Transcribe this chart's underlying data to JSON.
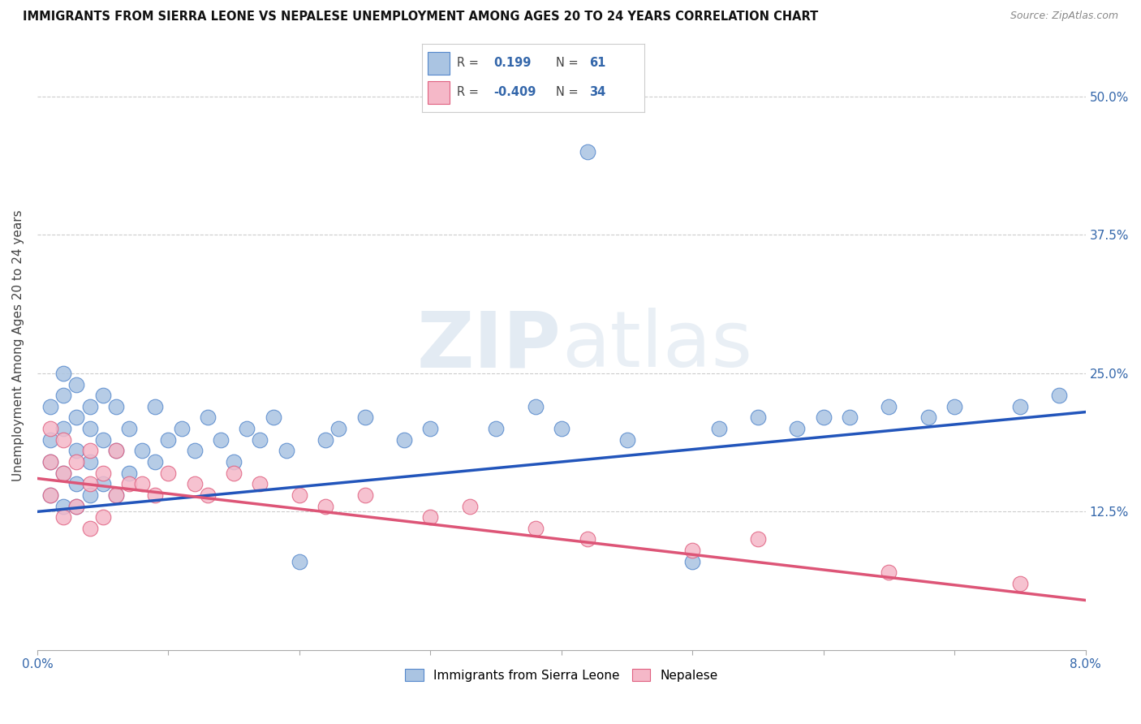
{
  "title": "IMMIGRANTS FROM SIERRA LEONE VS NEPALESE UNEMPLOYMENT AMONG AGES 20 TO 24 YEARS CORRELATION CHART",
  "source": "Source: ZipAtlas.com",
  "ylabel": "Unemployment Among Ages 20 to 24 years",
  "ytick_labels": [
    "12.5%",
    "25.0%",
    "37.5%",
    "50.0%"
  ],
  "ytick_values": [
    0.125,
    0.25,
    0.375,
    0.5
  ],
  "xlim": [
    0.0,
    0.08
  ],
  "ylim": [
    0.0,
    0.55
  ],
  "xtick_positions": [
    0.0,
    0.01,
    0.02,
    0.03,
    0.04,
    0.05,
    0.06,
    0.07,
    0.08
  ],
  "r_blue": 0.199,
  "n_blue": 61,
  "r_pink": -0.409,
  "n_pink": 34,
  "blue_color": "#aac4e2",
  "pink_color": "#f5b8c8",
  "blue_edge_color": "#5588cc",
  "pink_edge_color": "#e06080",
  "blue_line_color": "#2255bb",
  "pink_line_color": "#dd5577",
  "legend_label_blue": "Immigrants from Sierra Leone",
  "legend_label_pink": "Nepalese",
  "watermark_zip": "ZIP",
  "watermark_atlas": "atlas",
  "blue_scatter_x": [
    0.001,
    0.001,
    0.001,
    0.001,
    0.002,
    0.002,
    0.002,
    0.002,
    0.002,
    0.003,
    0.003,
    0.003,
    0.003,
    0.003,
    0.004,
    0.004,
    0.004,
    0.004,
    0.005,
    0.005,
    0.005,
    0.006,
    0.006,
    0.006,
    0.007,
    0.007,
    0.008,
    0.009,
    0.009,
    0.01,
    0.011,
    0.012,
    0.013,
    0.014,
    0.015,
    0.016,
    0.017,
    0.018,
    0.019,
    0.02,
    0.022,
    0.023,
    0.025,
    0.028,
    0.03,
    0.035,
    0.038,
    0.04,
    0.042,
    0.045,
    0.05,
    0.052,
    0.055,
    0.058,
    0.06,
    0.062,
    0.065,
    0.068,
    0.07,
    0.075,
    0.078
  ],
  "blue_scatter_y": [
    0.14,
    0.17,
    0.19,
    0.22,
    0.13,
    0.16,
    0.2,
    0.23,
    0.25,
    0.13,
    0.15,
    0.18,
    0.21,
    0.24,
    0.14,
    0.17,
    0.2,
    0.22,
    0.15,
    0.19,
    0.23,
    0.14,
    0.18,
    0.22,
    0.16,
    0.2,
    0.18,
    0.17,
    0.22,
    0.19,
    0.2,
    0.18,
    0.21,
    0.19,
    0.17,
    0.2,
    0.19,
    0.21,
    0.18,
    0.08,
    0.19,
    0.2,
    0.21,
    0.19,
    0.2,
    0.2,
    0.22,
    0.2,
    0.45,
    0.19,
    0.08,
    0.2,
    0.21,
    0.2,
    0.21,
    0.21,
    0.22,
    0.21,
    0.22,
    0.22,
    0.23
  ],
  "pink_scatter_x": [
    0.001,
    0.001,
    0.001,
    0.002,
    0.002,
    0.002,
    0.003,
    0.003,
    0.004,
    0.004,
    0.004,
    0.005,
    0.005,
    0.006,
    0.006,
    0.007,
    0.008,
    0.009,
    0.01,
    0.012,
    0.013,
    0.015,
    0.017,
    0.02,
    0.022,
    0.025,
    0.03,
    0.033,
    0.038,
    0.042,
    0.05,
    0.055,
    0.065,
    0.075
  ],
  "pink_scatter_y": [
    0.14,
    0.17,
    0.2,
    0.12,
    0.16,
    0.19,
    0.13,
    0.17,
    0.11,
    0.15,
    0.18,
    0.12,
    0.16,
    0.14,
    0.18,
    0.15,
    0.15,
    0.14,
    0.16,
    0.15,
    0.14,
    0.16,
    0.15,
    0.14,
    0.13,
    0.14,
    0.12,
    0.13,
    0.11,
    0.1,
    0.09,
    0.1,
    0.07,
    0.06
  ],
  "blue_trend_x": [
    0.0,
    0.08
  ],
  "blue_trend_y": [
    0.125,
    0.215
  ],
  "pink_trend_x": [
    0.0,
    0.08
  ],
  "pink_trend_y": [
    0.155,
    0.045
  ]
}
